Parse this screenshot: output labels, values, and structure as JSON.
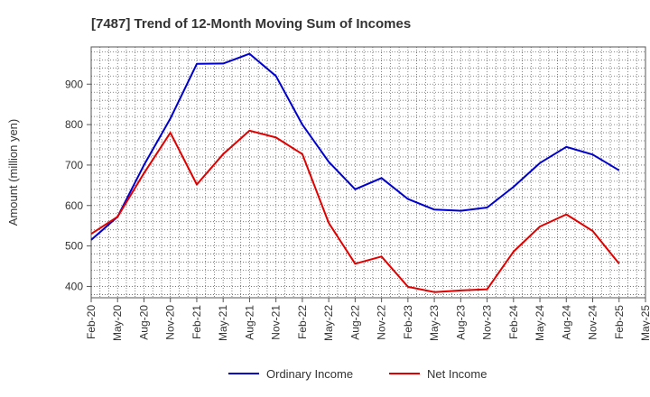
{
  "chart_data": {
    "type": "line",
    "title": "[7487]  Trend of 12-Month Moving Sum of Incomes",
    "xlabel": "",
    "ylabel": "Amount (million yen)",
    "ylim": [
      372,
      992
    ],
    "yticks": [
      400,
      500,
      600,
      700,
      800,
      900
    ],
    "grid": true,
    "legend_position": "bottom",
    "categories": [
      "Feb-20",
      "May-20",
      "Aug-20",
      "Nov-20",
      "Feb-21",
      "May-21",
      "Aug-21",
      "Nov-21",
      "Feb-22",
      "May-22",
      "Aug-22",
      "Nov-22",
      "Feb-23",
      "May-23",
      "Aug-23",
      "Nov-23",
      "Feb-24",
      "May-24",
      "Aug-24",
      "Nov-24",
      "Feb-25",
      "May-25"
    ],
    "series": [
      {
        "name": "Ordinary Income",
        "color": "#0000cc",
        "values": [
          515,
          572,
          700,
          815,
          950,
          951,
          975,
          920,
          800,
          708,
          640,
          668,
          616,
          590,
          587,
          595,
          646,
          705,
          745,
          726,
          687,
          null
        ]
      },
      {
        "name": "Net Income",
        "color": "#e00000",
        "values": [
          530,
          572,
          680,
          780,
          652,
          727,
          785,
          768,
          727,
          557,
          456,
          474,
          399,
          386,
          390,
          393,
          486,
          548,
          578,
          537,
          456,
          null
        ]
      }
    ]
  }
}
